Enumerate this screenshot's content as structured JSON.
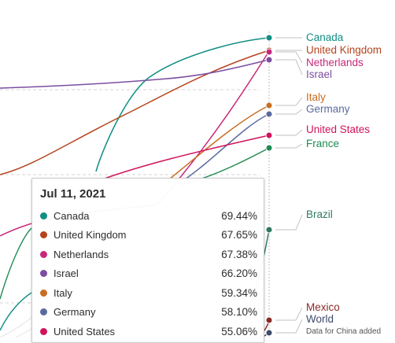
{
  "chart_data": {
    "type": "line",
    "title": "",
    "xlabel": "",
    "ylabel": "",
    "grid": true,
    "legend_placement": "right",
    "end_labels": [
      {
        "name": "Canada",
        "value": 69.44,
        "color": "#0f8f83"
      },
      {
        "name": "United Kingdom",
        "value": 67.65,
        "color": "#b5431e"
      },
      {
        "name": "Netherlands",
        "value": 67.38,
        "color": "#c8287a"
      },
      {
        "name": "Israel",
        "value": 66.2,
        "color": "#7b4ea0"
      },
      {
        "name": "Italy",
        "value": 59.34,
        "color": "#c76d22"
      },
      {
        "name": "Germany",
        "value": 58.1,
        "color": "#5a6a9e"
      },
      {
        "name": "United States",
        "value": 55.06,
        "color": "#d0135c"
      },
      {
        "name": "France",
        "value": 53.5,
        "color": "#1f8a53"
      },
      {
        "name": "Brazil",
        "value": 40.0,
        "color": "#2f7a62"
      },
      {
        "name": "Mexico",
        "value": 25.0,
        "color": "#8a2a2a"
      },
      {
        "name": "World",
        "value": 22.5,
        "color": "#3e4b6a"
      }
    ],
    "annotation": "Data for China added"
  },
  "tooltip": {
    "date": "Jul 11, 2021",
    "rows": [
      {
        "name": "Canada",
        "value": "69.44%",
        "color": "#0f8f83"
      },
      {
        "name": "United Kingdom",
        "value": "67.65%",
        "color": "#b5431e"
      },
      {
        "name": "Netherlands",
        "value": "67.38%",
        "color": "#c8287a"
      },
      {
        "name": "Israel",
        "value": "66.20%",
        "color": "#7b4ea0"
      },
      {
        "name": "Italy",
        "value": "59.34%",
        "color": "#c76d22"
      },
      {
        "name": "Germany",
        "value": "58.10%",
        "color": "#5a6a9e"
      },
      {
        "name": "United States",
        "value": "55.06%",
        "color": "#d0135c"
      }
    ]
  }
}
